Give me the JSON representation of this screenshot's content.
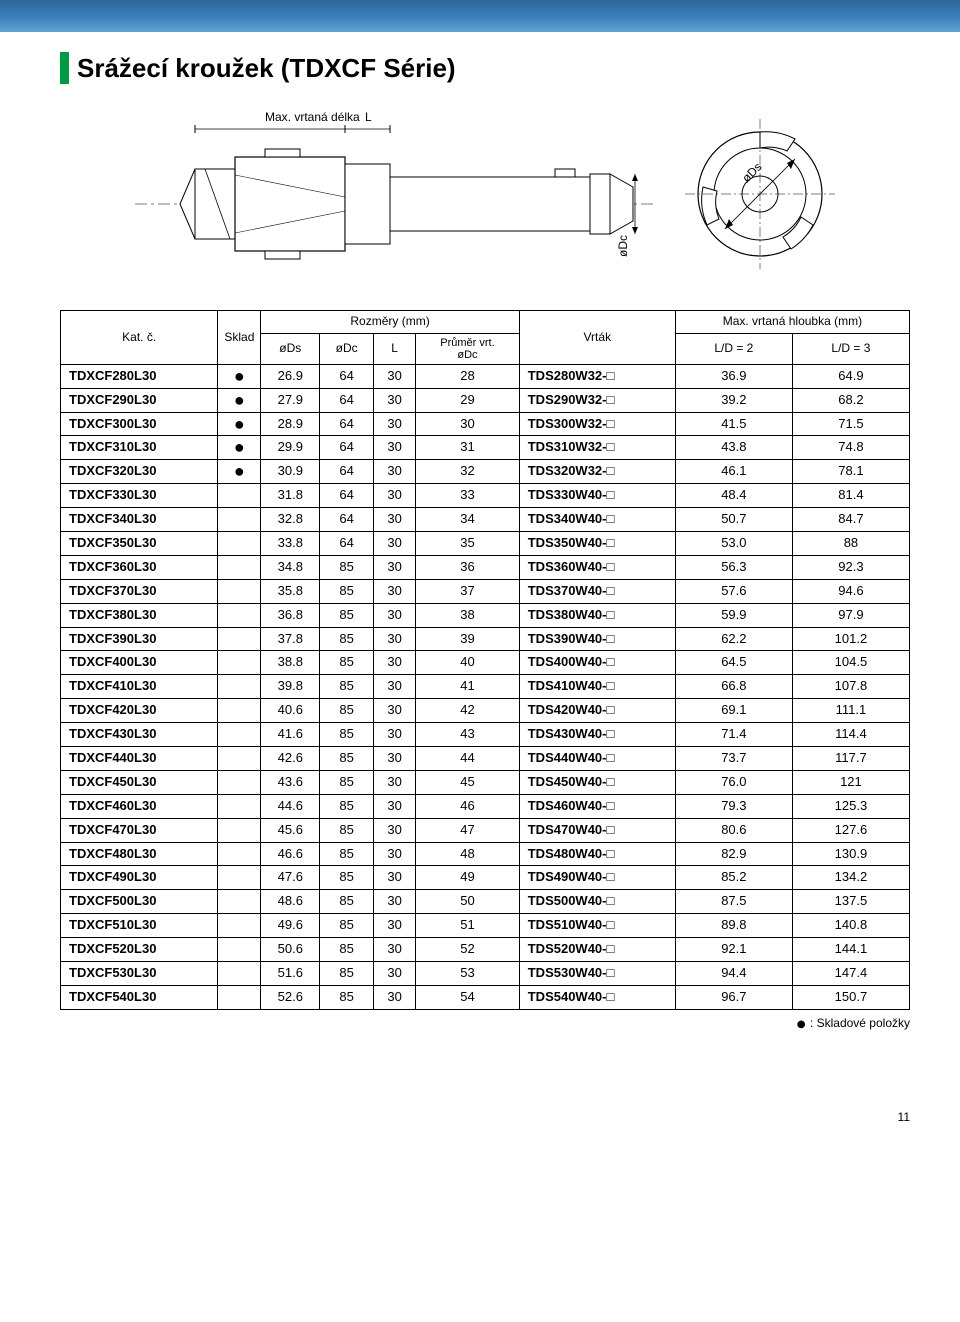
{
  "page_number": "11",
  "header_gradient": [
    "#2b6699",
    "#3a7db5",
    "#5fa3d4"
  ],
  "marker_color": "#009944",
  "title": "Srážecí kroužek (TDXCF Série)",
  "diagram_labels": {
    "max_drill_len": "Max. vrtaná délka",
    "L": "L",
    "oDc": "øDc",
    "oDs": "øDs"
  },
  "legend": {
    "dot": "●",
    "text": ": Skladové položky"
  },
  "table": {
    "head": {
      "kat": "Kat. č.",
      "sklad": "Sklad",
      "rozmery": "Rozměry (mm)",
      "ods": "øDs",
      "odc": "øDc",
      "L": "L",
      "prumer_top": "Průměr vrt.",
      "prumer_bot": "øDc",
      "vrtak": "Vrták",
      "max_hloubka": "Max. vrtaná hloubka (mm)",
      "ld2": "L/D = 2",
      "ld3": "L/D = 3"
    },
    "rows": [
      [
        "TDXCF280L30",
        true,
        "26.9",
        "64",
        "30",
        "28",
        "TDS280W32-□",
        "36.9",
        "64.9"
      ],
      [
        "TDXCF290L30",
        true,
        "27.9",
        "64",
        "30",
        "29",
        "TDS290W32-□",
        "39.2",
        "68.2"
      ],
      [
        "TDXCF300L30",
        true,
        "28.9",
        "64",
        "30",
        "30",
        "TDS300W32-□",
        "41.5",
        "71.5"
      ],
      [
        "TDXCF310L30",
        true,
        "29.9",
        "64",
        "30",
        "31",
        "TDS310W32-□",
        "43.8",
        "74.8"
      ],
      [
        "TDXCF320L30",
        true,
        "30.9",
        "64",
        "30",
        "32",
        "TDS320W32-□",
        "46.1",
        "78.1"
      ],
      [
        "TDXCF330L30",
        false,
        "31.8",
        "64",
        "30",
        "33",
        "TDS330W40-□",
        "48.4",
        "81.4"
      ],
      [
        "TDXCF340L30",
        false,
        "32.8",
        "64",
        "30",
        "34",
        "TDS340W40-□",
        "50.7",
        "84.7"
      ],
      [
        "TDXCF350L30",
        false,
        "33.8",
        "64",
        "30",
        "35",
        "TDS350W40-□",
        "53.0",
        "88"
      ],
      [
        "TDXCF360L30",
        false,
        "34.8",
        "85",
        "30",
        "36",
        "TDS360W40-□",
        "56.3",
        "92.3"
      ],
      [
        "TDXCF370L30",
        false,
        "35.8",
        "85",
        "30",
        "37",
        "TDS370W40-□",
        "57.6",
        "94.6"
      ],
      [
        "TDXCF380L30",
        false,
        "36.8",
        "85",
        "30",
        "38",
        "TDS380W40-□",
        "59.9",
        "97.9"
      ],
      [
        "TDXCF390L30",
        false,
        "37.8",
        "85",
        "30",
        "39",
        "TDS390W40-□",
        "62.2",
        "101.2"
      ],
      [
        "TDXCF400L30",
        false,
        "38.8",
        "85",
        "30",
        "40",
        "TDS400W40-□",
        "64.5",
        "104.5"
      ],
      [
        "TDXCF410L30",
        false,
        "39.8",
        "85",
        "30",
        "41",
        "TDS410W40-□",
        "66.8",
        "107.8"
      ],
      [
        "TDXCF420L30",
        false,
        "40.6",
        "85",
        "30",
        "42",
        "TDS420W40-□",
        "69.1",
        "111.1"
      ],
      [
        "TDXCF430L30",
        false,
        "41.6",
        "85",
        "30",
        "43",
        "TDS430W40-□",
        "71.4",
        "114.4"
      ],
      [
        "TDXCF440L30",
        false,
        "42.6",
        "85",
        "30",
        "44",
        "TDS440W40-□",
        "73.7",
        "117.7"
      ],
      [
        "TDXCF450L30",
        false,
        "43.6",
        "85",
        "30",
        "45",
        "TDS450W40-□",
        "76.0",
        "121"
      ],
      [
        "TDXCF460L30",
        false,
        "44.6",
        "85",
        "30",
        "46",
        "TDS460W40-□",
        "79.3",
        "125.3"
      ],
      [
        "TDXCF470L30",
        false,
        "45.6",
        "85",
        "30",
        "47",
        "TDS470W40-□",
        "80.6",
        "127.6"
      ],
      [
        "TDXCF480L30",
        false,
        "46.6",
        "85",
        "30",
        "48",
        "TDS480W40-□",
        "82.9",
        "130.9"
      ],
      [
        "TDXCF490L30",
        false,
        "47.6",
        "85",
        "30",
        "49",
        "TDS490W40-□",
        "85.2",
        "134.2"
      ],
      [
        "TDXCF500L30",
        false,
        "48.6",
        "85",
        "30",
        "50",
        "TDS500W40-□",
        "87.5",
        "137.5"
      ],
      [
        "TDXCF510L30",
        false,
        "49.6",
        "85",
        "30",
        "51",
        "TDS510W40-□",
        "89.8",
        "140.8"
      ],
      [
        "TDXCF520L30",
        false,
        "50.6",
        "85",
        "30",
        "52",
        "TDS520W40-□",
        "92.1",
        "144.1"
      ],
      [
        "TDXCF530L30",
        false,
        "51.6",
        "85",
        "30",
        "53",
        "TDS530W40-□",
        "94.4",
        "147.4"
      ],
      [
        "TDXCF540L30",
        false,
        "52.6",
        "85",
        "30",
        "54",
        "TDS540W40-□",
        "96.7",
        "150.7"
      ]
    ]
  }
}
